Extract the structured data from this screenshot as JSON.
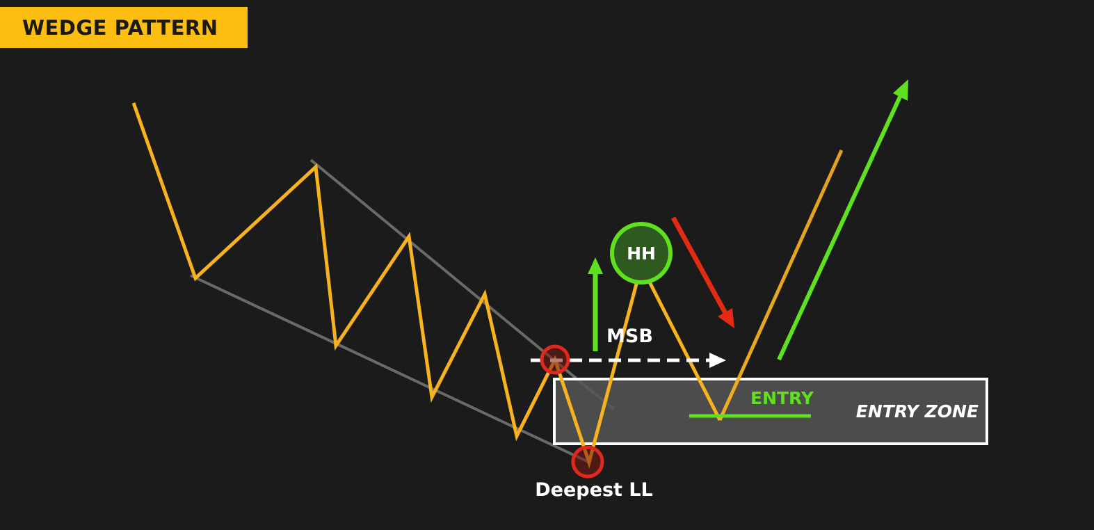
{
  "title": "WEDGE PATTERN",
  "labels": {
    "msb": "MSB",
    "higher_high": "HH",
    "entry": "ENTRY",
    "entry_zone": "ENTRY ZONE",
    "deepest_ll": "Deepest LL"
  },
  "colors": {
    "background": "#1b1b1b",
    "banner": "#fdbe12",
    "price_line": "#f7b21e",
    "wedge_lines": "#6a6a6a",
    "bullish": "#5fe11f",
    "bearish": "#e32a12",
    "marker_red": "#e0291a",
    "text": "#ffffff"
  }
}
